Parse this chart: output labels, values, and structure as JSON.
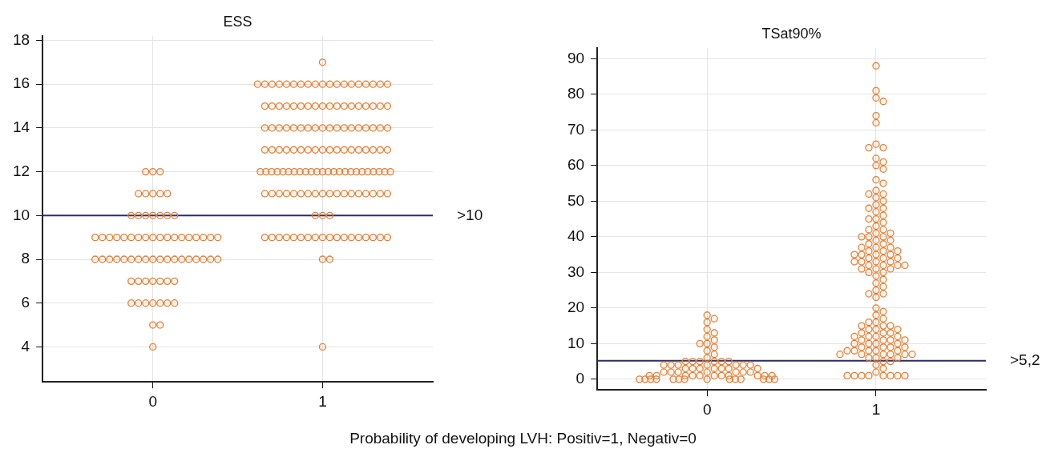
{
  "chart_data": [
    {
      "type": "scatter",
      "title": "ESS",
      "categories": [
        "0",
        "1"
      ],
      "ylim": [
        2.4,
        18.2
      ],
      "yticks": [
        4,
        6,
        8,
        10,
        12,
        14,
        16,
        18
      ],
      "grid": true,
      "marker": "circle",
      "legend": false,
      "ref_lines": [
        {
          "axis": "y",
          "value": 10,
          "label": ">10",
          "color": "#2b2b6b"
        }
      ],
      "annotations": [
        "Probability of developing LVH: Positiv=1, Negativ=0"
      ],
      "series": [
        {
          "color": "#e67e33",
          "x": [
            "0",
            "0",
            "0",
            "0",
            "0",
            "0",
            "0",
            "0",
            "0",
            "0",
            "0",
            "0",
            "0",
            "0",
            "0",
            "0",
            "0",
            "0",
            "0",
            "0",
            "0",
            "0",
            "0",
            "0",
            "0",
            "0",
            "0",
            "0",
            "0",
            "0",
            "0",
            "0",
            "0",
            "0",
            "0",
            "0",
            "0",
            "0",
            "0",
            "0",
            "0",
            "0",
            "0",
            "0",
            "0",
            "0",
            "0",
            "0",
            "0",
            "0",
            "0",
            "0",
            "0",
            "0",
            "0",
            "0",
            "0",
            "0",
            "0",
            "0",
            "0",
            "0",
            "0",
            "0",
            "0",
            "0",
            "0",
            "0",
            "1",
            "1",
            "1",
            "1",
            "1",
            "1",
            "1",
            "1",
            "1",
            "1",
            "1",
            "1",
            "1",
            "1",
            "1",
            "1",
            "1",
            "1",
            "1",
            "1",
            "1",
            "1",
            "1",
            "1",
            "1",
            "1",
            "1",
            "1",
            "1",
            "1",
            "1",
            "1",
            "1",
            "1",
            "1",
            "1",
            "1",
            "1",
            "1",
            "1",
            "1",
            "1",
            "1",
            "1",
            "1",
            "1",
            "1",
            "1",
            "1",
            "1",
            "1",
            "1",
            "1",
            "1",
            "1",
            "1",
            "1",
            "1",
            "1",
            "1",
            "1",
            "1",
            "1",
            "1",
            "1",
            "1",
            "1",
            "1",
            "1",
            "1",
            "1",
            "1",
            "1",
            "1",
            "1",
            "1",
            "1",
            "1",
            "1",
            "1",
            "1",
            "1",
            "1",
            "1",
            "1",
            "1",
            "1",
            "1",
            "1",
            "1",
            "1",
            "1",
            "1",
            "1",
            "1",
            "1",
            "1",
            "1",
            "1",
            "1",
            "1",
            "1",
            "1",
            "1",
            "1",
            "1",
            "1",
            "1",
            "1",
            "1",
            "1",
            "1",
            "1",
            "1",
            "1",
            "1",
            "1",
            "1",
            "1",
            "1",
            "1",
            "1",
            "1",
            "1",
            "1",
            "1",
            "1",
            "1",
            "1",
            "1",
            "1",
            "1",
            "1",
            "1",
            "1",
            "1",
            "1",
            "1",
            "1",
            "1"
          ],
          "values": [
            12,
            12,
            12,
            11,
            11,
            11,
            11,
            11,
            10,
            10,
            10,
            10,
            10,
            10,
            10,
            9,
            9,
            9,
            9,
            9,
            9,
            9,
            9,
            9,
            9,
            9,
            9,
            9,
            9,
            9,
            9,
            9,
            9,
            8,
            8,
            8,
            8,
            8,
            8,
            8,
            8,
            8,
            8,
            8,
            8,
            8,
            8,
            8,
            8,
            8,
            8,
            7,
            7,
            7,
            7,
            7,
            7,
            7,
            6,
            6,
            6,
            6,
            6,
            6,
            6,
            5,
            5,
            4,
            17,
            16,
            16,
            16,
            16,
            16,
            16,
            16,
            16,
            16,
            16,
            16,
            16,
            16,
            16,
            16,
            16,
            16,
            16,
            16,
            15,
            15,
            15,
            15,
            15,
            15,
            15,
            15,
            15,
            15,
            15,
            15,
            15,
            15,
            15,
            15,
            15,
            15,
            14,
            14,
            14,
            14,
            14,
            14,
            14,
            14,
            14,
            14,
            14,
            14,
            14,
            14,
            14,
            14,
            14,
            14,
            13,
            13,
            13,
            13,
            13,
            13,
            13,
            13,
            13,
            13,
            13,
            13,
            13,
            13,
            13,
            13,
            13,
            13,
            12,
            12,
            12,
            12,
            12,
            12,
            12,
            12,
            12,
            12,
            12,
            12,
            12,
            12,
            12,
            12,
            12,
            12,
            12,
            12,
            12,
            12,
            12,
            12,
            11,
            11,
            11,
            11,
            11,
            11,
            11,
            11,
            11,
            11,
            11,
            11,
            11,
            11,
            11,
            11,
            11,
            11,
            10,
            10,
            10,
            9,
            9,
            9,
            9,
            9,
            9,
            9,
            9,
            9,
            9,
            9,
            9,
            9,
            9,
            9,
            9,
            9,
            9,
            8,
            8,
            4
          ]
        }
      ]
    },
    {
      "type": "scatter",
      "title": "TSat90%",
      "categories": [
        "0",
        "1"
      ],
      "ylim": [
        -3,
        93
      ],
      "yticks": [
        0,
        10,
        20,
        30,
        40,
        50,
        60,
        70,
        80,
        90
      ],
      "grid": true,
      "marker": "circle",
      "legend": false,
      "ref_lines": [
        {
          "axis": "y",
          "value": 5.2,
          "label": ">5,2",
          "color": "#2b2b6b"
        }
      ],
      "series": [
        {
          "color": "#e67e33",
          "x": [
            "0",
            "0",
            "0",
            "0",
            "0",
            "0",
            "0",
            "0",
            "0",
            "0",
            "0",
            "0",
            "0",
            "0",
            "0",
            "0",
            "0",
            "0",
            "0",
            "0",
            "0",
            "0",
            "0",
            "0",
            "0",
            "0",
            "0",
            "0",
            "0",
            "0",
            "0",
            "0",
            "0",
            "0",
            "0",
            "0",
            "0",
            "0",
            "0",
            "0",
            "0",
            "0",
            "0",
            "0",
            "0",
            "0",
            "0",
            "0",
            "0",
            "0",
            "0",
            "0",
            "0",
            "0",
            "0",
            "0",
            "0",
            "0",
            "0",
            "0",
            "0",
            "0",
            "0",
            "0",
            "0",
            "1",
            "1",
            "1",
            "1",
            "1",
            "1",
            "1",
            "1",
            "1",
            "1",
            "1",
            "1",
            "1",
            "1",
            "1",
            "1",
            "1",
            "1",
            "1",
            "1",
            "1",
            "1",
            "1",
            "1",
            "1",
            "1",
            "1",
            "1",
            "1",
            "1",
            "1",
            "1",
            "1",
            "1",
            "1",
            "1",
            "1",
            "1",
            "1",
            "1",
            "1",
            "1",
            "1",
            "1",
            "1",
            "1",
            "1",
            "1",
            "1",
            "1",
            "1",
            "1",
            "1",
            "1",
            "1",
            "1",
            "1",
            "1",
            "1",
            "1",
            "1",
            "1",
            "1",
            "1",
            "1",
            "1",
            "1",
            "1",
            "1",
            "1",
            "1",
            "1",
            "1",
            "1",
            "1",
            "1",
            "1",
            "1",
            "1",
            "1",
            "1",
            "1",
            "1",
            "1",
            "1",
            "1",
            "1",
            "1",
            "1",
            "1",
            "1",
            "1",
            "1",
            "1",
            "1",
            "1",
            "1",
            "1",
            "1",
            "1",
            "1",
            "1",
            "1",
            "1",
            "1",
            "1",
            "1",
            "1",
            "1",
            "1",
            "1",
            "1",
            "1",
            "1",
            "1",
            "1",
            "1",
            "1",
            "1",
            "1",
            "1",
            "1",
            "1",
            "1",
            "1",
            "1",
            "1",
            "1",
            "1",
            "1",
            "1",
            "1"
          ],
          "values": [
            18,
            17,
            16,
            14,
            13,
            12,
            11,
            10,
            10,
            9,
            8,
            7,
            6,
            5,
            5,
            5,
            5,
            5,
            5,
            4,
            4,
            4,
            4,
            4,
            4,
            4,
            3,
            3,
            3,
            3,
            3,
            3,
            3,
            2,
            2,
            2,
            2,
            2,
            2,
            2,
            1,
            1,
            1,
            1,
            1,
            1,
            1,
            1,
            1,
            1,
            1,
            0,
            0,
            0,
            0,
            0,
            0,
            0,
            0,
            0,
            0,
            0,
            0,
            0,
            0,
            88,
            81,
            79,
            78,
            74,
            72,
            66,
            65,
            65,
            62,
            61,
            60,
            59,
            56,
            55,
            53,
            52,
            52,
            51,
            50,
            49,
            48,
            48,
            47,
            46,
            45,
            45,
            44,
            43,
            42,
            42,
            41,
            41,
            40,
            40,
            40,
            39,
            39,
            38,
            38,
            37,
            37,
            37,
            36,
            36,
            36,
            35,
            35,
            35,
            35,
            34,
            34,
            34,
            33,
            33,
            33,
            33,
            32,
            32,
            32,
            32,
            31,
            31,
            31,
            30,
            30,
            29,
            28,
            27,
            26,
            25,
            24,
            24,
            23,
            20,
            19,
            18,
            17,
            16,
            16,
            15,
            15,
            15,
            14,
            14,
            14,
            13,
            13,
            13,
            12,
            12,
            12,
            12,
            11,
            11,
            11,
            11,
            10,
            10,
            10,
            10,
            9,
            9,
            9,
            9,
            8,
            8,
            8,
            8,
            8,
            7,
            7,
            7,
            7,
            7,
            7,
            6,
            6,
            6,
            5,
            5,
            4,
            3,
            2,
            1,
            1,
            1,
            1,
            1,
            1,
            1,
            1
          ]
        }
      ]
    }
  ]
}
